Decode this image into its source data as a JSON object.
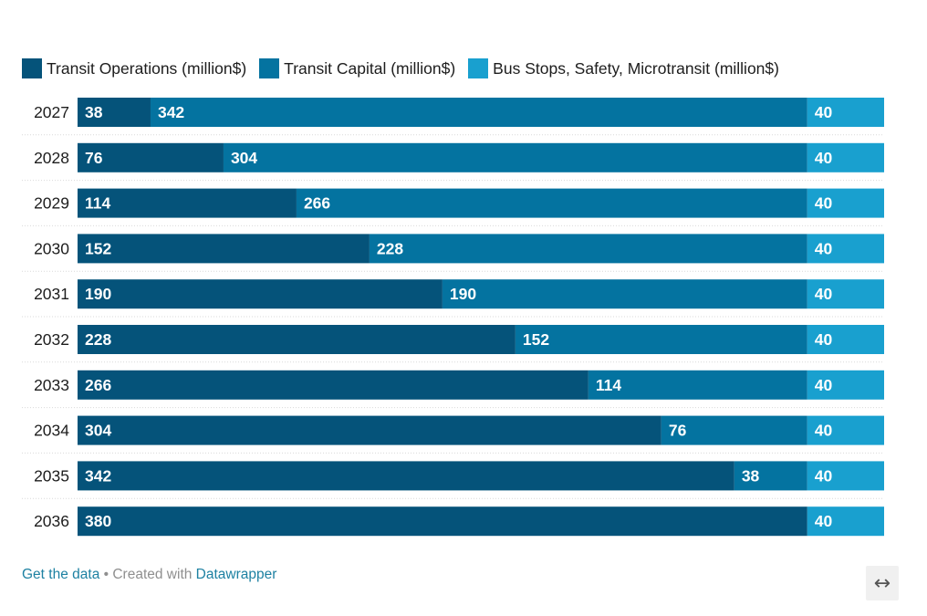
{
  "chart_data": {
    "type": "bar",
    "orientation": "horizontal",
    "stacked": true,
    "categories": [
      "2027",
      "2028",
      "2029",
      "2030",
      "2031",
      "2032",
      "2033",
      "2034",
      "2035",
      "2036"
    ],
    "series": [
      {
        "name": "Transit Operations (million$)",
        "color": "#05537a",
        "values": [
          38,
          76,
          114,
          152,
          190,
          228,
          266,
          304,
          342,
          380
        ]
      },
      {
        "name": "Transit Capital (million$)",
        "color": "#0473a0",
        "values": [
          342,
          304,
          266,
          228,
          190,
          152,
          114,
          76,
          38,
          0
        ]
      },
      {
        "name": "Bus Stops, Safety, Microtransit (million$)",
        "color": "#19a0cf",
        "values": [
          40,
          40,
          40,
          40,
          40,
          40,
          40,
          40,
          40,
          40
        ]
      }
    ],
    "xlim": [
      0,
      420
    ],
    "legend_position": "top-left",
    "grid": false
  },
  "footer": {
    "get_data": "Get the data",
    "separator": " • Created with ",
    "datawrapper": "Datawrapper"
  },
  "icons": {
    "expand": "↔"
  }
}
